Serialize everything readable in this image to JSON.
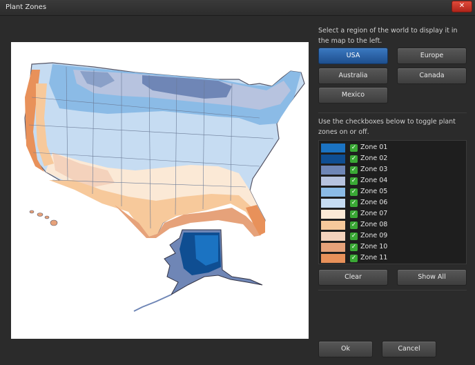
{
  "window": {
    "title": "Plant Zones",
    "close_glyph": "✕"
  },
  "region": {
    "instruction": "Select a region of the world to display it in the map to the left.",
    "buttons": [
      {
        "label": "USA",
        "selected": true
      },
      {
        "label": "Europe",
        "selected": false
      },
      {
        "label": "Australia",
        "selected": false
      },
      {
        "label": "Canada",
        "selected": false
      },
      {
        "label": "Mexico",
        "selected": false
      }
    ]
  },
  "zones": {
    "instruction": "Use the checkboxes below to toggle plant zones on or off.",
    "items": [
      {
        "label": "Zone 01",
        "color": "#1b73c2",
        "checked": true
      },
      {
        "label": "Zone 02",
        "color": "#0f4e92",
        "checked": true
      },
      {
        "label": "Zone 03",
        "color": "#6f86b6",
        "checked": true
      },
      {
        "label": "Zone 04",
        "color": "#b7c3df",
        "checked": true
      },
      {
        "label": "Zone 05",
        "color": "#8bbbe6",
        "checked": true
      },
      {
        "label": "Zone 06",
        "color": "#c6dcf2",
        "checked": true
      },
      {
        "label": "Zone 07",
        "color": "#fbe9d6",
        "checked": true
      },
      {
        "label": "Zone 08",
        "color": "#f7c99b",
        "checked": true
      },
      {
        "label": "Zone 09",
        "color": "#f4d2bc",
        "checked": true
      },
      {
        "label": "Zone 10",
        "color": "#e6a27a",
        "checked": true
      },
      {
        "label": "Zone 11",
        "color": "#e8915a",
        "checked": true
      }
    ],
    "check_glyph": "✓"
  },
  "actions": {
    "clear": "Clear",
    "show_all": "Show All"
  },
  "dialog": {
    "ok": "Ok",
    "cancel": "Cancel"
  }
}
